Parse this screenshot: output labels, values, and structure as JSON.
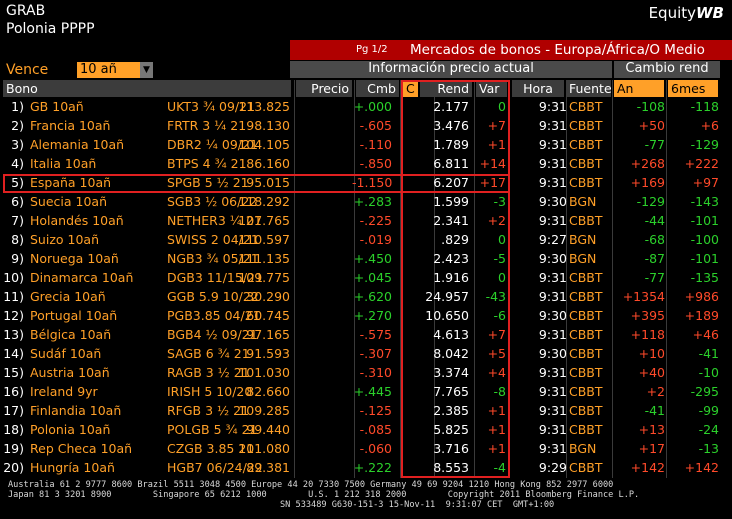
{
  "header": {
    "app": "GRAB",
    "screen": "Equity",
    "screen_bold": "WB",
    "subtitle": "Polonia PPPP"
  },
  "title_bar": {
    "page": "Pg 1/2",
    "title": "Mercados de bonos - Europa/África/O Medio"
  },
  "controls": {
    "label": "Vence",
    "dropdown": "10 añ",
    "group_current": "Información precio actual",
    "group_change": "Cambio rend"
  },
  "table": {
    "headers": {
      "bond": "Bono",
      "price": "Precio",
      "chg": "Cmb",
      "c": "C",
      "yield": "Rend",
      "var": "Var",
      "time": "Hora",
      "source": "Fuente",
      "year": "An",
      "six_months": "6mes"
    },
    "rows": [
      {
        "num": "1)",
        "name": "GB 10añ",
        "ticker": "UKT3 ¾ 09/21",
        "price": "113.825",
        "chg": "+.000",
        "yield": "2.177",
        "var": "0",
        "time": "9:31",
        "source": "CBBT",
        "year": "-108",
        "six_months": "-118"
      },
      {
        "num": "2)",
        "name": "Francia 10añ",
        "ticker": "FRTR 3 ¼ 21",
        "price": "98.130",
        "chg": "-.605",
        "yield": "3.476",
        "var": "+7",
        "time": "9:31",
        "source": "CBBT",
        "year": "+50",
        "six_months": "+6"
      },
      {
        "num": "3)",
        "name": "Alemania 10añ",
        "ticker": "DBR2 ¼ 09/21",
        "price": "104.105",
        "chg": "-.110",
        "yield": "1.789",
        "var": "+1",
        "time": "9:31",
        "source": "CBBT",
        "year": "-77",
        "six_months": "-129"
      },
      {
        "num": "4)",
        "name": "Italia 10añ",
        "ticker": "BTPS 4 ¾ 21",
        "price": "86.160",
        "chg": "-.850",
        "yield": "6.811",
        "var": "+14",
        "time": "9:31",
        "source": "CBBT",
        "year": "+268",
        "six_months": "+222"
      },
      {
        "num": "5)",
        "name": "España 10añ",
        "ticker": "SPGB 5 ½ 21",
        "price": "95.015",
        "chg": "-1.150",
        "yield": "6.207",
        "var": "+17",
        "time": "9:31",
        "source": "CBBT",
        "year": "+169",
        "six_months": "+97"
      },
      {
        "num": "6)",
        "name": "Suecia 10añ",
        "ticker": "SGB3 ½ 06/22",
        "price": "118.292",
        "chg": "+.283",
        "yield": "1.599",
        "var": "-3",
        "time": "9:30",
        "source": "BGN",
        "year": "-129",
        "six_months": "-143"
      },
      {
        "num": "7)",
        "name": "Holandés 10añ",
        "ticker": "NETHER3 ¼ 21",
        "price": "107.765",
        "chg": "-.225",
        "yield": "2.341",
        "var": "+2",
        "time": "9:31",
        "source": "CBBT",
        "year": "-44",
        "six_months": "-101"
      },
      {
        "num": "8)",
        "name": "Suizo 10añ",
        "ticker": "SWISS 2 04/21",
        "price": "110.597",
        "chg": "-.019",
        "yield": ".829",
        "var": "0",
        "time": "9:27",
        "source": "BGN",
        "year": "-68",
        "six_months": "-100"
      },
      {
        "num": "9)",
        "name": "Noruega 10añ",
        "ticker": "NGB3 ¾ 05/21",
        "price": "111.135",
        "chg": "+.450",
        "yield": "2.423",
        "var": "-5",
        "time": "9:30",
        "source": "BGN",
        "year": "-87",
        "six_months": "-101"
      },
      {
        "num": "10)",
        "name": "Dinamarca 10añ",
        "ticker": "DGB3 11/15/21",
        "price": "109.775",
        "chg": "+.045",
        "yield": "1.916",
        "var": "0",
        "time": "9:31",
        "source": "CBBT",
        "year": "-77",
        "six_months": "-135"
      },
      {
        "num": "11)",
        "name": "Grecia 10añ",
        "ticker": "GGB 5.9 10/22",
        "price": "30.290",
        "chg": "+.620",
        "yield": "24.957",
        "var": "-43",
        "time": "9:31",
        "source": "CBBT",
        "year": "+1354",
        "six_months": "+986"
      },
      {
        "num": "12)",
        "name": "Portugal 10añ",
        "ticker": "PGB3.85 04/21",
        "price": "60.745",
        "chg": "+.270",
        "yield": "10.650",
        "var": "-6",
        "time": "9:30",
        "source": "CBBT",
        "year": "+395",
        "six_months": "+189"
      },
      {
        "num": "13)",
        "name": "Bélgica 10añ",
        "ticker": "BGB4 ½ 09/21",
        "price": "97.165",
        "chg": "-.575",
        "yield": "4.613",
        "var": "+7",
        "time": "9:31",
        "source": "CBBT",
        "year": "+118",
        "six_months": "+46"
      },
      {
        "num": "14)",
        "name": "Sudáf 10añ",
        "ticker": "SAGB 6 ¾ 21",
        "price": "91.593",
        "chg": "-.307",
        "yield": "8.042",
        "var": "+5",
        "time": "9:30",
        "source": "CBBT",
        "year": "+10",
        "six_months": "-41"
      },
      {
        "num": "15)",
        "name": "Austria 10añ",
        "ticker": "RAGB 3 ½ 21",
        "price": "101.030",
        "chg": "-.310",
        "yield": "3.374",
        "var": "+4",
        "time": "9:31",
        "source": "CBBT",
        "year": "+40",
        "six_months": "-10"
      },
      {
        "num": "16)",
        "name": "Ireland 9yr",
        "ticker": "IRISH 5 10/20",
        "price": "82.660",
        "chg": "+.445",
        "yield": "7.765",
        "var": "-8",
        "time": "9:31",
        "source": "CBBT",
        "year": "+2",
        "six_months": "-295"
      },
      {
        "num": "17)",
        "name": "Finlandia 10añ",
        "ticker": "RFGB 3 ½ 21",
        "price": "109.285",
        "chg": "-.125",
        "yield": "2.385",
        "var": "+1",
        "time": "9:31",
        "source": "CBBT",
        "year": "-41",
        "six_months": "-99"
      },
      {
        "num": "18)",
        "name": "Polonia 10añ",
        "ticker": "POLGB 5 ¾ 21",
        "price": "99.440",
        "chg": "-.085",
        "yield": "5.825",
        "var": "+1",
        "time": "9:31",
        "source": "CBBT",
        "year": "+13",
        "six_months": "-24"
      },
      {
        "num": "19)",
        "name": "Rep Checa 10añ",
        "ticker": "CZGB 3.85 21",
        "price": "101.080",
        "chg": "-.060",
        "yield": "3.716",
        "var": "+1",
        "time": "9:31",
        "source": "BGN",
        "year": "+17",
        "six_months": "-13"
      },
      {
        "num": "20)",
        "name": "Hungría 10añ",
        "ticker": "HGB7 06/24/22",
        "price": "89.381",
        "chg": "+.222",
        "yield": "8.553",
        "var": "-4",
        "time": "9:29",
        "source": "CBBT",
        "year": "+142",
        "six_months": "+142"
      }
    ]
  },
  "footer": {
    "line1": "Australia 61 2 9777 8600 Brazil 5511 3048 4500 Europe 44 20 7330 7500 Germany 49 69 9204 1210 Hong Kong 852 2977 6000",
    "line2": "Japan 81 3 3201 8900        Singapore 65 6212 1000        U.S. 1 212 318 2000        Copyright 2011 Bloomberg Finance L.P.",
    "line3": "SN 533489 G630-151-3 15-Nov-11  9:31:07 CET  GMT+1:00"
  }
}
